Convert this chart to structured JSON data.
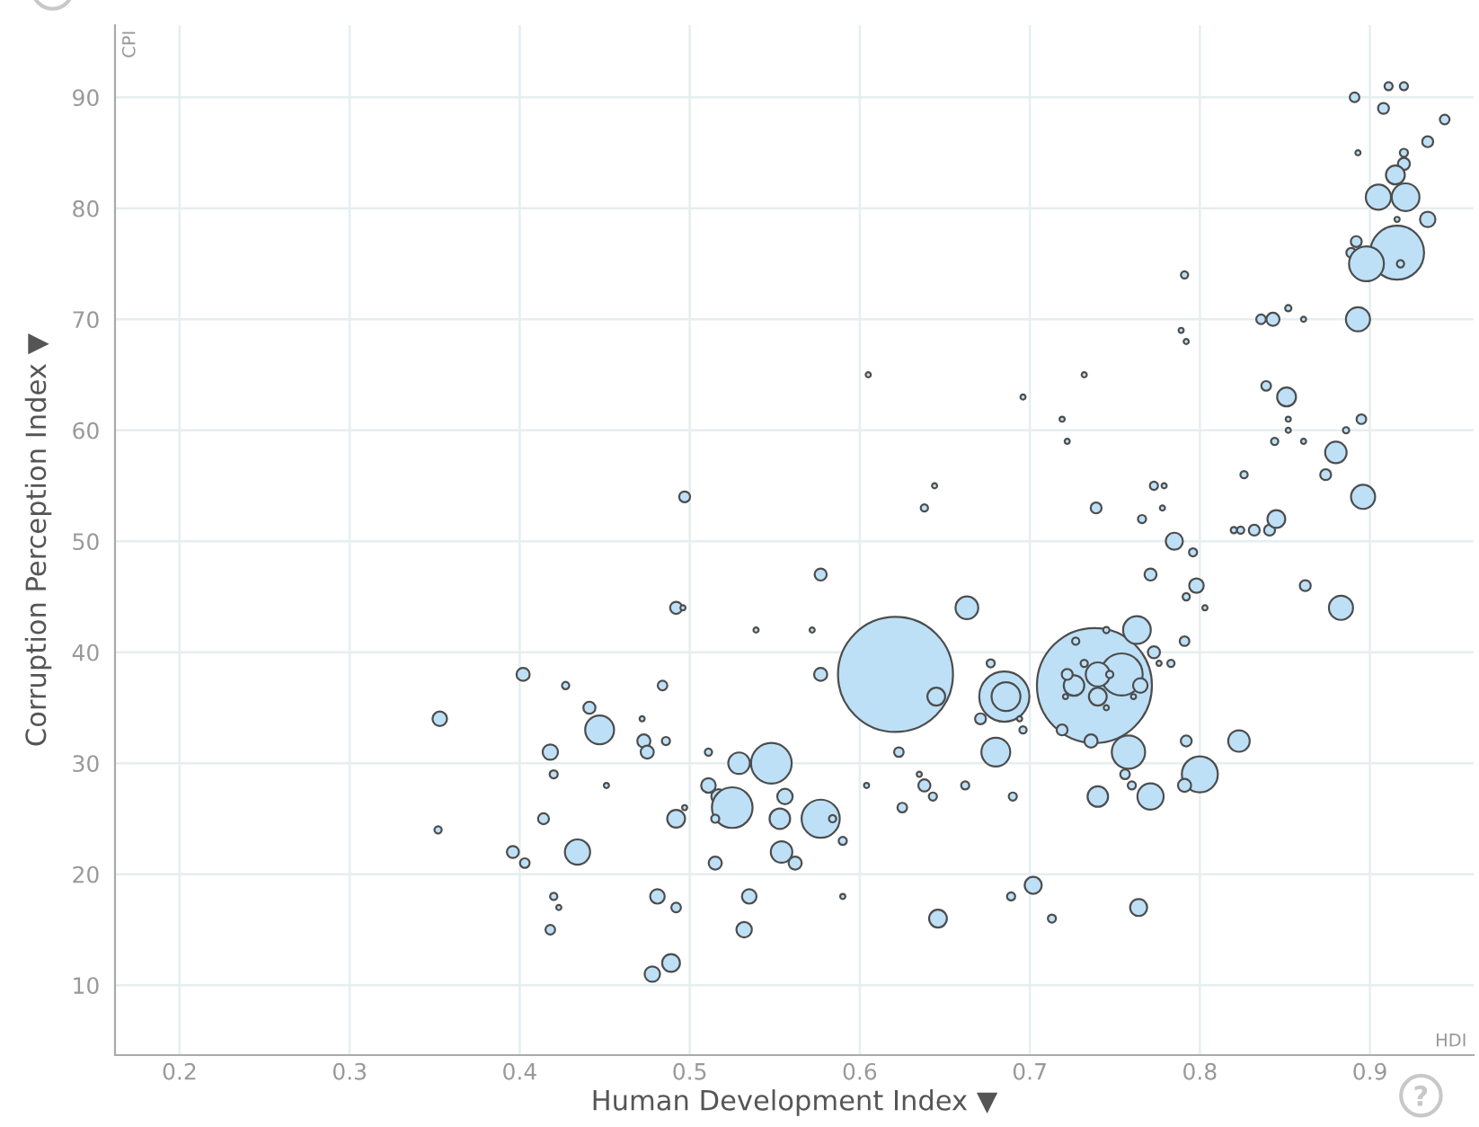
{
  "chart_data": {
    "type": "bubble",
    "xlabel": "Human Development Index ▼",
    "ylabel": "Corruption Perception Index ▼",
    "annotations": [
      "CPI",
      "HDI"
    ],
    "xlim": [
      0.162,
      0.961
    ],
    "ylim": [
      3.7,
      96.5
    ],
    "xticks": [
      0.2,
      0.3,
      0.4,
      0.5,
      0.6,
      0.7,
      0.8,
      0.9
    ],
    "yticks": [
      10,
      20,
      30,
      40,
      50,
      60,
      70,
      80,
      90
    ],
    "grid": true,
    "series": [
      {
        "color": "#bde0f7",
        "x": [
          0.621,
          0.738,
          0.754,
          0.685,
          0.686,
          0.916,
          0.353,
          0.352,
          0.402,
          0.427,
          0.441,
          0.447,
          0.472,
          0.473,
          0.475,
          0.486,
          0.484,
          0.418,
          0.42,
          0.451,
          0.414,
          0.396,
          0.403,
          0.434,
          0.42,
          0.423,
          0.418,
          0.478,
          0.489,
          0.481,
          0.492,
          0.492,
          0.497,
          0.511,
          0.529,
          0.548,
          0.511,
          0.517,
          0.525,
          0.515,
          0.556,
          0.553,
          0.577,
          0.584,
          0.59,
          0.554,
          0.562,
          0.515,
          0.535,
          0.532,
          0.59,
          0.623,
          0.625,
          0.604,
          0.492,
          0.496,
          0.539,
          0.572,
          0.577,
          0.577,
          0.644,
          0.638,
          0.739,
          0.773,
          0.779,
          0.826,
          0.766,
          0.778,
          0.785,
          0.796,
          0.82,
          0.824,
          0.832,
          0.841,
          0.845,
          0.771,
          0.798,
          0.792,
          0.803,
          0.663,
          0.763,
          0.745,
          0.727,
          0.773,
          0.791,
          0.776,
          0.783,
          0.677,
          0.671,
          0.694,
          0.696,
          0.645,
          0.74,
          0.74,
          0.726,
          0.765,
          0.722,
          0.732,
          0.747,
          0.761,
          0.745,
          0.721,
          0.719,
          0.736,
          0.68,
          0.758,
          0.792,
          0.823,
          0.8,
          0.791,
          0.756,
          0.76,
          0.74,
          0.771,
          0.635,
          0.638,
          0.643,
          0.662,
          0.69,
          0.702,
          0.689,
          0.646,
          0.713,
          0.764,
          0.836,
          0.843,
          0.852,
          0.861,
          0.893,
          0.839,
          0.851,
          0.852,
          0.852,
          0.844,
          0.861,
          0.886,
          0.895,
          0.88,
          0.874,
          0.896,
          0.862,
          0.883,
          0.911,
          0.92,
          0.891,
          0.908,
          0.944,
          0.893,
          0.934,
          0.92,
          0.92,
          0.915,
          0.905,
          0.921,
          0.916,
          0.934,
          0.892,
          0.889,
          0.898,
          0.918,
          0.605,
          0.696,
          0.732,
          0.719,
          0.722,
          0.791,
          0.789,
          0.792,
          0.497
        ],
        "values": [
          38,
          37,
          38,
          36,
          36,
          76,
          34,
          24,
          38,
          37,
          35,
          33,
          34,
          32,
          31,
          32,
          37,
          31,
          29,
          28,
          25,
          22,
          21,
          22,
          18,
          17,
          15,
          11,
          12,
          18,
          17,
          25,
          26,
          31,
          30,
          30,
          28,
          27,
          26,
          25,
          27,
          25,
          25,
          25,
          23,
          22,
          21,
          21,
          18,
          15,
          18,
          31,
          26,
          28,
          44,
          44,
          42,
          42,
          38,
          47,
          55,
          53,
          53,
          55,
          55,
          56,
          52,
          53,
          50,
          49,
          51,
          51,
          51,
          51,
          52,
          47,
          46,
          45,
          44,
          44,
          42,
          42,
          41,
          40,
          41,
          39,
          39,
          39,
          34,
          34,
          33,
          36,
          38,
          36,
          37,
          37,
          38,
          39,
          38,
          36,
          35,
          36,
          33,
          32,
          31,
          31,
          32,
          32,
          29,
          28,
          29,
          28,
          27,
          27,
          29,
          28,
          27,
          28,
          27,
          19,
          18,
          16,
          16,
          17,
          70,
          70,
          71,
          70,
          70,
          64,
          63,
          61,
          60,
          59,
          59,
          60,
          61,
          58,
          56,
          54,
          46,
          44,
          91,
          91,
          90,
          89,
          88,
          85,
          86,
          85,
          84,
          83,
          81,
          81,
          79,
          79,
          77,
          76,
          75,
          75,
          65,
          63,
          65,
          61,
          59,
          74,
          69,
          68,
          54
        ],
        "sizes": [
          1,
          1,
          0.134,
          0.19,
          0.063,
          0.22,
          0.016,
          0.004,
          0.013,
          0.004,
          0.011,
          0.063,
          0.002,
          0.013,
          0.013,
          0.005,
          0.007,
          0.018,
          0.005,
          0.002,
          0.009,
          0.011,
          0.007,
          0.048,
          0.004,
          0.002,
          0.007,
          0.018,
          0.024,
          0.016,
          0.007,
          0.024,
          0.002,
          0.004,
          0.035,
          0.125,
          0.016,
          0.016,
          0.125,
          0.005,
          0.018,
          0.032,
          0.11,
          0.004,
          0.005,
          0.035,
          0.013,
          0.013,
          0.016,
          0.018,
          0.002,
          0.007,
          0.007,
          0.002,
          0.011,
          0.002,
          0.002,
          0.002,
          0.013,
          0.011,
          0.002,
          0.004,
          0.009,
          0.005,
          0.002,
          0.004,
          0.005,
          0.002,
          0.022,
          0.005,
          0.003,
          0.004,
          0.009,
          0.009,
          0.024,
          0.011,
          0.016,
          0.004,
          0.002,
          0.039,
          0.058,
          0.003,
          0.004,
          0.011,
          0.007,
          0.002,
          0.004,
          0.005,
          0.009,
          0.002,
          0.004,
          0.024,
          0.044,
          0.024,
          0.032,
          0.016,
          0.009,
          0.004,
          0.004,
          0.002,
          0.002,
          0.002,
          0.009,
          0.013,
          0.063,
          0.084,
          0.009,
          0.035,
          0.098,
          0.013,
          0.007,
          0.005,
          0.032,
          0.052,
          0.002,
          0.011,
          0.005,
          0.005,
          0.005,
          0.022,
          0.005,
          0.024,
          0.005,
          0.022,
          0.007,
          0.013,
          0.003,
          0.002,
          0.044,
          0.007,
          0.027,
          0.002,
          0.002,
          0.004,
          0.002,
          0.003,
          0.007,
          0.035,
          0.009,
          0.044,
          0.009,
          0.044,
          0.005,
          0.005,
          0.007,
          0.009,
          0.007,
          0.002,
          0.009,
          0.005,
          0.011,
          0.027,
          0.048,
          0.058,
          0.002,
          0.018,
          0.009,
          0.007,
          0.092,
          0.004,
          0.002,
          0.002,
          0.002,
          0.002,
          0.002,
          0.004,
          0.002,
          0.002,
          0.009
        ]
      }
    ]
  }
}
